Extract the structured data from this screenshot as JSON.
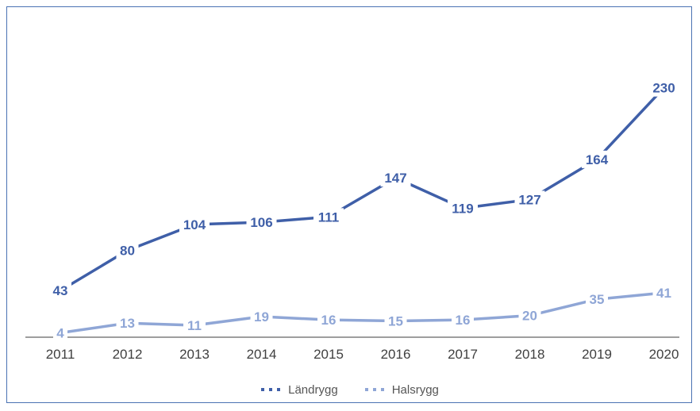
{
  "chart_data": {
    "type": "line",
    "categories": [
      "2011",
      "2012",
      "2013",
      "2014",
      "2015",
      "2016",
      "2017",
      "2018",
      "2019",
      "2020"
    ],
    "series": [
      {
        "name": "Ländrygg",
        "values": [
          43,
          80,
          104,
          106,
          111,
          147,
          119,
          127,
          164,
          230
        ],
        "color": "#3f5fa8"
      },
      {
        "name": "Halsrygg",
        "values": [
          4,
          13,
          11,
          19,
          16,
          15,
          16,
          20,
          35,
          41
        ],
        "color": "#8fa6d6"
      }
    ],
    "ylim": [
      0,
      240
    ],
    "grid": false,
    "legend": "bottom-center"
  }
}
